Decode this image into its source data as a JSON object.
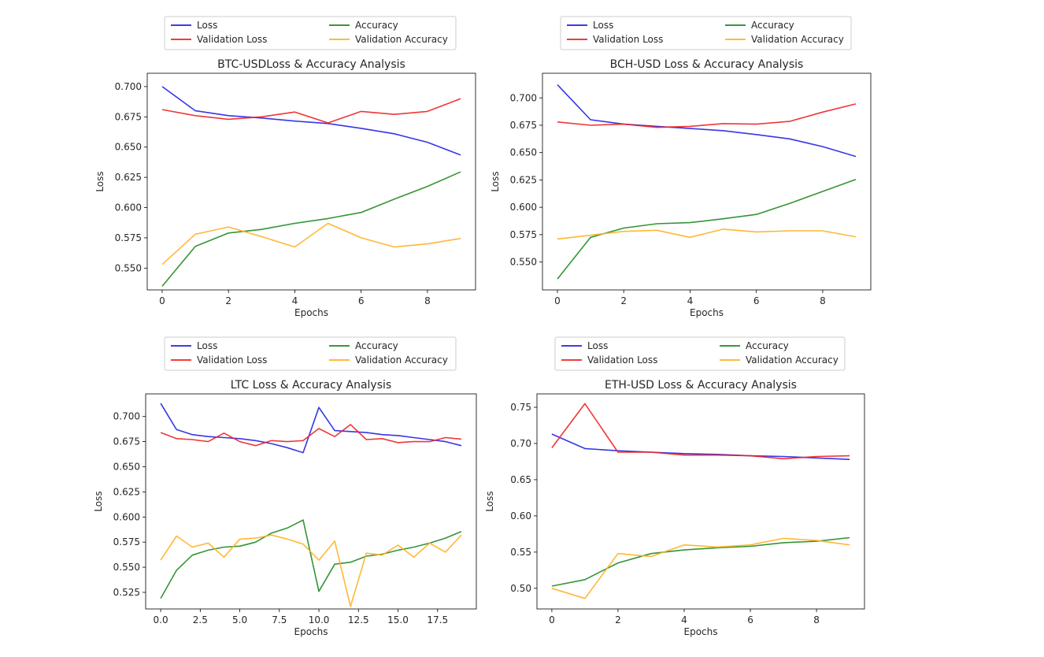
{
  "chart_data": [
    {
      "type": "line",
      "title": "BTC-USDLoss & Accuracy Analysis",
      "xlabel": "Epochs",
      "ylabel": "Loss",
      "xlim": [
        -0.45,
        9.45
      ],
      "ylim": [
        0.532,
        0.711
      ],
      "xticks": [
        0,
        2,
        4,
        6,
        8
      ],
      "xtick_labels": [
        "0",
        "2",
        "4",
        "6",
        "8"
      ],
      "yticks": [
        0.55,
        0.575,
        0.6,
        0.625,
        0.65,
        0.675,
        0.7
      ],
      "ytick_labels": [
        "0.550",
        "0.575",
        "0.600",
        "0.625",
        "0.650",
        "0.675",
        "0.700"
      ],
      "x": [
        0,
        1,
        2,
        3,
        4,
        5,
        6,
        7,
        8,
        9
      ],
      "legend_position": "top-center",
      "series": [
        {
          "name": "Loss",
          "color": "#2020e6",
          "values": [
            0.7,
            0.68,
            0.676,
            0.674,
            0.6715,
            0.6695,
            0.6655,
            0.661,
            0.654,
            0.6435
          ]
        },
        {
          "name": "Validation Loss",
          "color": "#f02020",
          "values": [
            0.681,
            0.676,
            0.673,
            0.675,
            0.679,
            0.67,
            0.6795,
            0.677,
            0.6795,
            0.69
          ]
        },
        {
          "name": "Accuracy",
          "color": "#1e8a1e",
          "values": [
            0.535,
            0.568,
            0.579,
            0.582,
            0.587,
            0.591,
            0.596,
            0.607,
            0.6175,
            0.6295
          ]
        },
        {
          "name": "Validation Accuracy",
          "color": "#ffb020",
          "values": [
            0.553,
            0.578,
            0.584,
            0.576,
            0.5675,
            0.587,
            0.575,
            0.5675,
            0.57,
            0.5745
          ]
        }
      ]
    },
    {
      "type": "line",
      "title": "BCH-USD Loss & Accuracy Analysis",
      "xlabel": "Epochs",
      "ylabel": "Loss",
      "xlim": [
        -0.45,
        9.45
      ],
      "ylim": [
        0.5245,
        0.7225
      ],
      "xticks": [
        0,
        2,
        4,
        6,
        8
      ],
      "xtick_labels": [
        "0",
        "2",
        "4",
        "6",
        "8"
      ],
      "yticks": [
        0.55,
        0.575,
        0.6,
        0.625,
        0.65,
        0.675,
        0.7
      ],
      "ytick_labels": [
        "0.550",
        "0.575",
        "0.600",
        "0.625",
        "0.650",
        "0.675",
        "0.700"
      ],
      "x": [
        0,
        1,
        2,
        3,
        4,
        5,
        6,
        7,
        8,
        9
      ],
      "legend_position": "top-center",
      "series": [
        {
          "name": "Loss",
          "color": "#2020e6",
          "values": [
            0.712,
            0.68,
            0.676,
            0.674,
            0.672,
            0.67,
            0.6665,
            0.6625,
            0.6555,
            0.6465
          ]
        },
        {
          "name": "Validation Loss",
          "color": "#f02020",
          "values": [
            0.678,
            0.675,
            0.676,
            0.673,
            0.674,
            0.6765,
            0.676,
            0.6785,
            0.687,
            0.6945
          ]
        },
        {
          "name": "Accuracy",
          "color": "#1e8a1e",
          "values": [
            0.5345,
            0.5725,
            0.581,
            0.585,
            0.586,
            0.5895,
            0.5935,
            0.6035,
            0.6145,
            0.6255
          ]
        },
        {
          "name": "Validation Accuracy",
          "color": "#ffb020",
          "values": [
            0.571,
            0.5745,
            0.578,
            0.579,
            0.5725,
            0.58,
            0.5775,
            0.5785,
            0.5785,
            0.573
          ]
        }
      ]
    },
    {
      "type": "line",
      "title": "LTC Loss & Accuracy Analysis",
      "xlabel": "Epochs",
      "ylabel": "Loss",
      "xlim": [
        -0.95,
        19.95
      ],
      "ylim": [
        0.5085,
        0.7225
      ],
      "xticks": [
        0,
        2.5,
        5,
        7.5,
        10,
        12.5,
        15,
        17.5
      ],
      "xtick_labels": [
        "0.0",
        "2.5",
        "5.0",
        "7.5",
        "10.0",
        "12.5",
        "15.0",
        "17.5"
      ],
      "yticks": [
        0.525,
        0.55,
        0.575,
        0.6,
        0.625,
        0.65,
        0.675,
        0.7
      ],
      "ytick_labels": [
        "0.525",
        "0.550",
        "0.575",
        "0.600",
        "0.625",
        "0.650",
        "0.675",
        "0.700"
      ],
      "x": [
        0,
        1,
        2,
        3,
        4,
        5,
        6,
        7,
        8,
        9,
        10,
        11,
        12,
        13,
        14,
        15,
        16,
        17,
        18,
        19
      ],
      "legend_position": "top-center",
      "series": [
        {
          "name": "Loss",
          "color": "#2020e6",
          "values": [
            0.713,
            0.687,
            0.682,
            0.68,
            0.679,
            0.678,
            0.676,
            0.673,
            0.669,
            0.664,
            0.709,
            0.686,
            0.685,
            0.684,
            0.682,
            0.681,
            0.679,
            0.677,
            0.675,
            0.671
          ]
        },
        {
          "name": "Validation Loss",
          "color": "#f02020",
          "values": [
            0.684,
            0.678,
            0.677,
            0.675,
            0.6835,
            0.675,
            0.671,
            0.676,
            0.675,
            0.676,
            0.688,
            0.68,
            0.692,
            0.677,
            0.678,
            0.674,
            0.675,
            0.675,
            0.679,
            0.6775
          ]
        },
        {
          "name": "Accuracy",
          "color": "#1e8a1e",
          "values": [
            0.519,
            0.547,
            0.562,
            0.567,
            0.57,
            0.571,
            0.575,
            0.584,
            0.589,
            0.597,
            0.526,
            0.553,
            0.555,
            0.561,
            0.563,
            0.567,
            0.57,
            0.574,
            0.579,
            0.5855
          ]
        },
        {
          "name": "Validation Accuracy",
          "color": "#ffb020",
          "values": [
            0.557,
            0.581,
            0.57,
            0.574,
            0.56,
            0.578,
            0.579,
            0.582,
            0.578,
            0.573,
            0.557,
            0.576,
            0.511,
            0.564,
            0.562,
            0.572,
            0.56,
            0.574,
            0.565,
            0.582
          ]
        }
      ]
    },
    {
      "type": "line",
      "title": "ETH-USD Loss & Accuracy Analysis",
      "xlabel": "Epochs",
      "ylabel": "Loss",
      "xlim": [
        -0.45,
        9.45
      ],
      "ylim": [
        0.4715,
        0.7685
      ],
      "xticks": [
        0,
        2,
        4,
        6,
        8
      ],
      "xtick_labels": [
        "0",
        "2",
        "4",
        "6",
        "8"
      ],
      "yticks": [
        0.5,
        0.55,
        0.6,
        0.65,
        0.7,
        0.75
      ],
      "ytick_labels": [
        "0.50",
        "0.55",
        "0.60",
        "0.65",
        "0.70",
        "0.75"
      ],
      "x": [
        0,
        1,
        2,
        3,
        4,
        5,
        6,
        7,
        8,
        9
      ],
      "legend_position": "top-center",
      "series": [
        {
          "name": "Loss",
          "color": "#2020e6",
          "values": [
            0.713,
            0.693,
            0.69,
            0.688,
            0.686,
            0.685,
            0.683,
            0.682,
            0.68,
            0.678
          ]
        },
        {
          "name": "Validation Loss",
          "color": "#f02020",
          "values": [
            0.694,
            0.755,
            0.688,
            0.688,
            0.684,
            0.684,
            0.683,
            0.679,
            0.682,
            0.683
          ]
        },
        {
          "name": "Accuracy",
          "color": "#1e8a1e",
          "values": [
            0.503,
            0.512,
            0.535,
            0.548,
            0.553,
            0.556,
            0.558,
            0.563,
            0.565,
            0.57
          ]
        },
        {
          "name": "Validation Accuracy",
          "color": "#ffb020",
          "values": [
            0.5,
            0.486,
            0.548,
            0.544,
            0.56,
            0.557,
            0.56,
            0.569,
            0.566,
            0.56
          ]
        }
      ]
    }
  ]
}
